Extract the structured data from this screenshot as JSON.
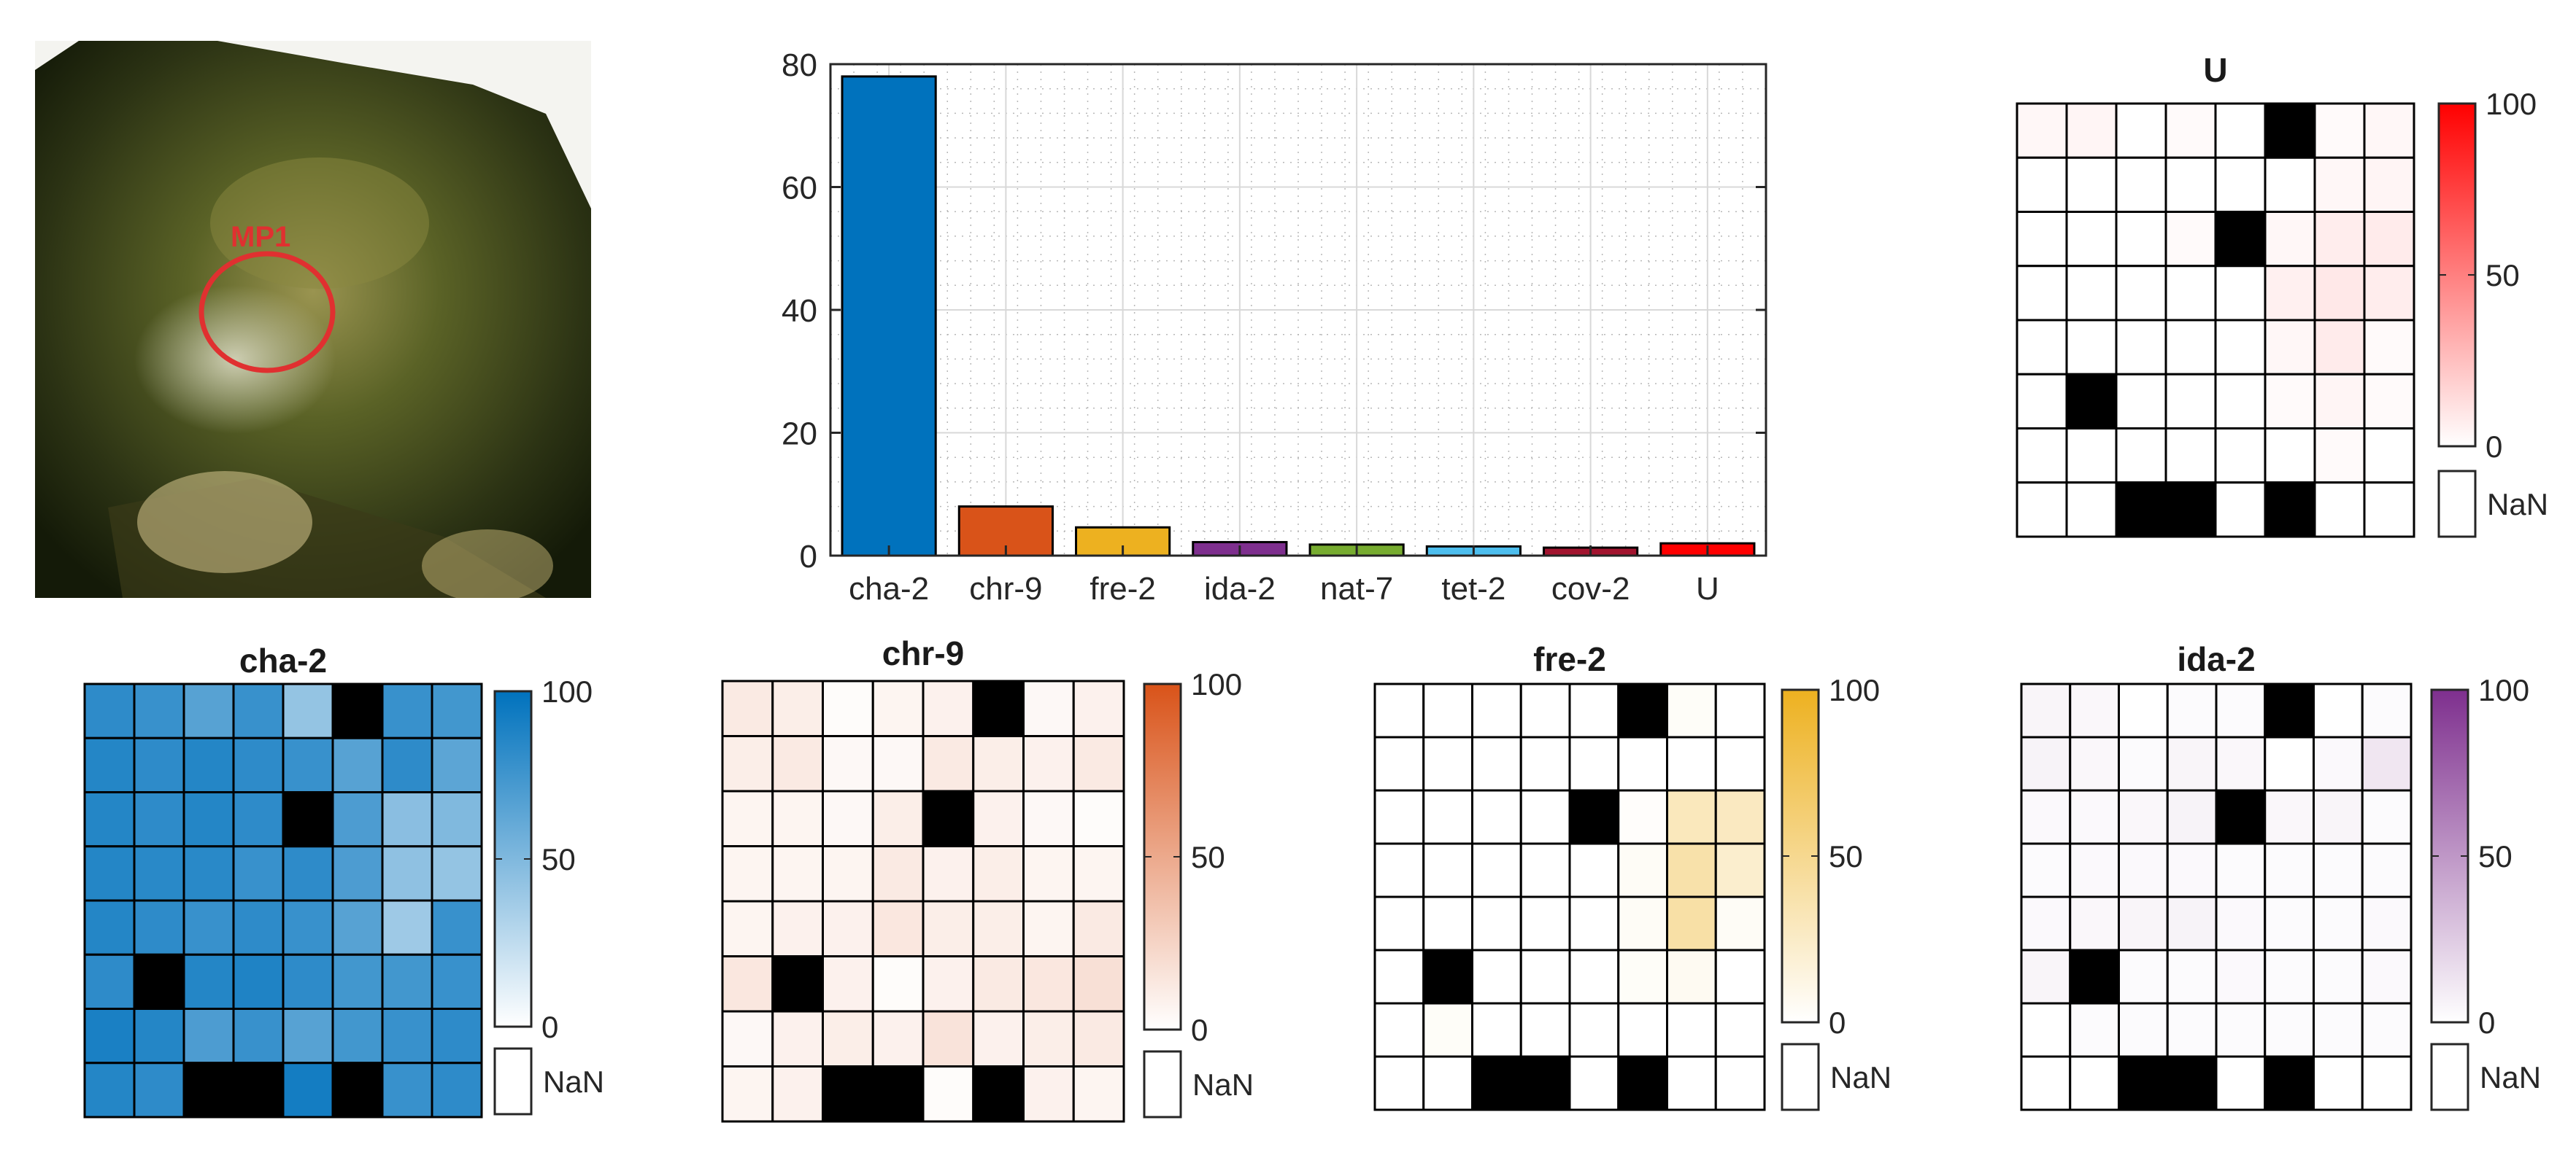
{
  "photo": {
    "annotation_label": "MP1",
    "colors": {
      "rock_dark": "#1f2412",
      "rock_mid": "#4a5220",
      "rock_light": "#8a8a3a",
      "circle": "#e03030"
    }
  },
  "colors": {
    "blue": "#0072bd",
    "orange": "#d95319",
    "yellow": "#edb120",
    "purple": "#7e2f8e",
    "green": "#77ac30",
    "cyan": "#4dbeee",
    "darkred": "#a2142f",
    "red": "#ff0000",
    "nan": "#000000"
  },
  "chart_data": [
    {
      "type": "bar",
      "categories": [
        "cha-2",
        "chr-9",
        "fre-2",
        "ida-2",
        "nat-7",
        "tet-2",
        "cov-2",
        "U"
      ],
      "values": [
        78.0,
        8.0,
        4.6,
        2.2,
        1.8,
        1.5,
        1.3,
        2.0
      ],
      "colors": [
        "#0072bd",
        "#d95319",
        "#edb120",
        "#7e2f8e",
        "#77ac30",
        "#4dbeee",
        "#a2142f",
        "#ff0000"
      ],
      "ylim": [
        0,
        80
      ],
      "yticks": [
        0,
        20,
        40,
        60,
        80
      ],
      "grid": true
    },
    {
      "type": "heatmap",
      "title": "U",
      "color": "#ff0000",
      "clim": [
        0,
        100
      ],
      "colorbar_ticks": [
        0,
        50,
        100
      ],
      "nan_label": "NaN",
      "values": [
        [
          3,
          4,
          0,
          2,
          0,
          null,
          2,
          3
        ],
        [
          0,
          0,
          0,
          0,
          0,
          0,
          3,
          4
        ],
        [
          0,
          0,
          0,
          2,
          null,
          3,
          7,
          8
        ],
        [
          0,
          0,
          0,
          0,
          0,
          6,
          9,
          7
        ],
        [
          0,
          0,
          0,
          0,
          0,
          3,
          8,
          2
        ],
        [
          0,
          null,
          0,
          0,
          0,
          2,
          4,
          2
        ],
        [
          0,
          0,
          0,
          0,
          0,
          0,
          2,
          0
        ],
        [
          0,
          0,
          null,
          null,
          0,
          null,
          0,
          0
        ]
      ]
    },
    {
      "type": "heatmap",
      "title": "cha-2",
      "color": "#0072bd",
      "clim": [
        0,
        100
      ],
      "colorbar_ticks": [
        0,
        50,
        100
      ],
      "nan_label": "NaN",
      "values": [
        [
          82,
          78,
          66,
          78,
          42,
          null,
          78,
          74
        ],
        [
          86,
          82,
          86,
          82,
          78,
          66,
          82,
          64
        ],
        [
          86,
          82,
          86,
          82,
          null,
          70,
          46,
          50
        ],
        [
          86,
          84,
          84,
          78,
          82,
          70,
          44,
          42
        ],
        [
          86,
          82,
          78,
          82,
          78,
          66,
          38,
          78
        ],
        [
          82,
          null,
          86,
          88,
          82,
          74,
          74,
          78
        ],
        [
          90,
          86,
          70,
          78,
          66,
          74,
          78,
          82
        ],
        [
          86,
          82,
          null,
          null,
          92,
          null,
          78,
          82
        ]
      ]
    },
    {
      "type": "heatmap",
      "title": "chr-9",
      "color": "#d95319",
      "clim": [
        0,
        100
      ],
      "colorbar_ticks": [
        0,
        50,
        100
      ],
      "nan_label": "NaN",
      "values": [
        [
          12,
          10,
          2,
          6,
          8,
          null,
          4,
          8
        ],
        [
          10,
          12,
          4,
          4,
          12,
          10,
          8,
          12
        ],
        [
          6,
          6,
          4,
          10,
          null,
          8,
          4,
          2
        ],
        [
          6,
          6,
          6,
          12,
          8,
          10,
          6,
          6
        ],
        [
          6,
          8,
          8,
          14,
          10,
          10,
          6,
          12
        ],
        [
          14,
          null,
          8,
          2,
          8,
          12,
          14,
          18
        ],
        [
          4,
          8,
          10,
          8,
          16,
          8,
          10,
          12
        ],
        [
          6,
          8,
          null,
          null,
          2,
          null,
          8,
          6
        ]
      ]
    },
    {
      "type": "heatmap",
      "title": "fre-2",
      "color": "#edb120",
      "clim": [
        0,
        100
      ],
      "colorbar_ticks": [
        0,
        50,
        100
      ],
      "nan_label": "NaN",
      "values": [
        [
          0,
          0,
          0,
          0,
          0,
          null,
          3,
          0
        ],
        [
          0,
          0,
          0,
          0,
          0,
          0,
          0,
          0
        ],
        [
          0,
          0,
          0,
          0,
          null,
          2,
          30,
          28
        ],
        [
          0,
          0,
          0,
          0,
          0,
          4,
          38,
          22
        ],
        [
          0,
          0,
          0,
          0,
          0,
          4,
          40,
          4
        ],
        [
          0,
          null,
          0,
          0,
          0,
          3,
          6,
          0
        ],
        [
          0,
          3,
          0,
          0,
          0,
          0,
          0,
          0
        ],
        [
          0,
          0,
          null,
          null,
          0,
          null,
          0,
          0
        ]
      ]
    },
    {
      "type": "heatmap",
      "title": "ida-2",
      "color": "#7e2f8e",
      "clim": [
        0,
        100
      ],
      "colorbar_ticks": [
        0,
        50,
        100
      ],
      "nan_label": "NaN",
      "values": [
        [
          5,
          4,
          0,
          2,
          2,
          null,
          0,
          2
        ],
        [
          6,
          4,
          2,
          5,
          4,
          0,
          3,
          12
        ],
        [
          3,
          3,
          4,
          6,
          null,
          4,
          5,
          2
        ],
        [
          2,
          3,
          3,
          3,
          2,
          2,
          2,
          2
        ],
        [
          3,
          4,
          5,
          6,
          3,
          2,
          2,
          3
        ],
        [
          5,
          null,
          2,
          2,
          3,
          2,
          2,
          3
        ],
        [
          0,
          2,
          2,
          2,
          2,
          2,
          2,
          2
        ],
        [
          0,
          0,
          null,
          null,
          0,
          null,
          0,
          0
        ]
      ]
    }
  ]
}
